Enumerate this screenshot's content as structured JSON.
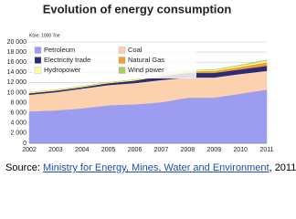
{
  "chart_data": {
    "type": "stacked-area",
    "title": "Evolution of energy consumption",
    "y_label": "Ktoe; 1000 Toe",
    "categories": [
      "2002",
      "2003",
      "2004",
      "2005",
      "2006",
      "2007",
      "2008",
      "2009",
      "2010",
      "2011"
    ],
    "series": [
      {
        "name": "Petroleum",
        "color": "#9c9cf0",
        "values": [
          6300,
          6500,
          6900,
          7500,
          7700,
          8100,
          9000,
          9000,
          9800,
          10600
        ]
      },
      {
        "name": "Coal",
        "color": "#fcd2ae",
        "values": [
          3300,
          3600,
          3900,
          4000,
          4200,
          4400,
          4000,
          4000,
          3900,
          3700
        ]
      },
      {
        "name": "Electricity trade",
        "color": "#2b2b78",
        "values": [
          300,
          300,
          300,
          400,
          500,
          700,
          900,
          900,
          900,
          1000
        ]
      },
      {
        "name": "Natural Gas",
        "color": "#f0a030",
        "values": [
          0,
          0,
          0,
          0,
          0,
          200,
          300,
          400,
          500,
          700
        ]
      },
      {
        "name": "Hydropower",
        "color": "#ffff9c",
        "values": [
          150,
          150,
          150,
          150,
          150,
          200,
          200,
          200,
          250,
          300
        ]
      },
      {
        "name": "Wind power",
        "color": "#b5c960",
        "values": [
          0,
          0,
          0,
          0,
          0,
          0,
          0,
          50,
          100,
          150
        ]
      }
    ],
    "ylim": [
      0,
      20000
    ],
    "yticks": [
      0,
      {
        "value": 2000,
        "label": "2 000"
      },
      {
        "value": 4000,
        "label": "4 000"
      },
      {
        "value": 6000,
        "label": "6 000"
      },
      {
        "value": 8000,
        "label": "8 000"
      },
      {
        "value": 10000,
        "label": "10 000"
      },
      {
        "value": 12000,
        "label": "12 000"
      },
      {
        "value": 14000,
        "label": "14 000"
      },
      {
        "value": 16000,
        "label": "16 000"
      },
      {
        "value": 18000,
        "label": "18 000"
      },
      {
        "value": 20000,
        "label": "20 000"
      }
    ],
    "grid": true,
    "legend": "top-left"
  },
  "source": {
    "prefix": "Source:",
    "link": "Ministry for Energy, Mines, Water and Environment",
    "suffix": ", 2011"
  }
}
